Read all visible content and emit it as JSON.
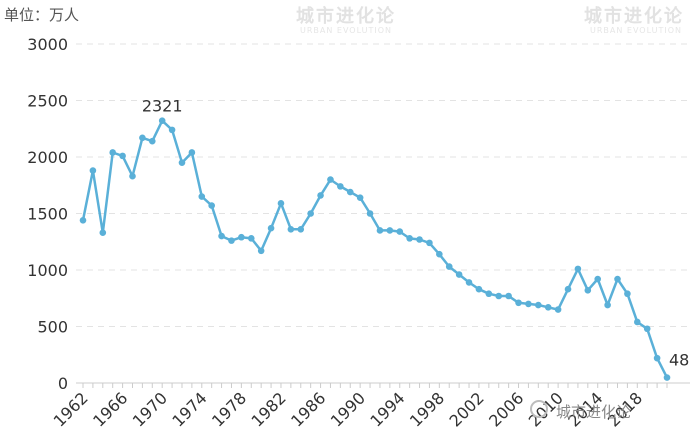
{
  "unit_label": "单位：万人",
  "watermark": {
    "title": "城市进化论",
    "subtitle": "URBAN EVOLUTION"
  },
  "source_mark": "城市进化论",
  "chart_data": {
    "type": "line",
    "x": [
      1962,
      1963,
      1964,
      1965,
      1966,
      1967,
      1968,
      1969,
      1970,
      1971,
      1972,
      1973,
      1974,
      1975,
      1976,
      1977,
      1978,
      1979,
      1980,
      1981,
      1982,
      1983,
      1984,
      1985,
      1986,
      1987,
      1988,
      1989,
      1990,
      1991,
      1992,
      1993,
      1994,
      1995,
      1996,
      1997,
      1998,
      1999,
      2000,
      2001,
      2002,
      2003,
      2004,
      2005,
      2006,
      2007,
      2008,
      2009,
      2010,
      2011,
      2012,
      2013,
      2014,
      2015,
      2016,
      2017,
      2018,
      2019,
      2020,
      2021
    ],
    "values": [
      1440,
      1880,
      1330,
      2040,
      2010,
      1830,
      2170,
      2140,
      2321,
      2240,
      1950,
      2040,
      1650,
      1570,
      1300,
      1260,
      1290,
      1280,
      1170,
      1370,
      1590,
      1360,
      1360,
      1500,
      1660,
      1800,
      1740,
      1690,
      1640,
      1500,
      1350,
      1350,
      1340,
      1280,
      1270,
      1240,
      1140,
      1030,
      960,
      890,
      830,
      790,
      770,
      770,
      710,
      700,
      690,
      670,
      650,
      830,
      1010,
      820,
      920,
      690,
      920,
      790,
      540,
      480,
      220,
      48
    ],
    "annotations": [
      {
        "x": 1970,
        "label": "2321"
      },
      {
        "x": 2021,
        "label": "48"
      }
    ],
    "xticks": [
      "1962",
      "1966",
      "1970",
      "1974",
      "1978",
      "1982",
      "1986",
      "1990",
      "1994",
      "1998",
      "2002",
      "2006",
      "2010",
      "2014",
      "2018"
    ],
    "yticks": [
      "0",
      "500",
      "1000",
      "1500",
      "2000",
      "2500",
      "3000"
    ],
    "ylim": [
      0,
      3000
    ],
    "xlim": [
      1962,
      2021
    ],
    "grid": true,
    "color": "#5ab0d8"
  }
}
